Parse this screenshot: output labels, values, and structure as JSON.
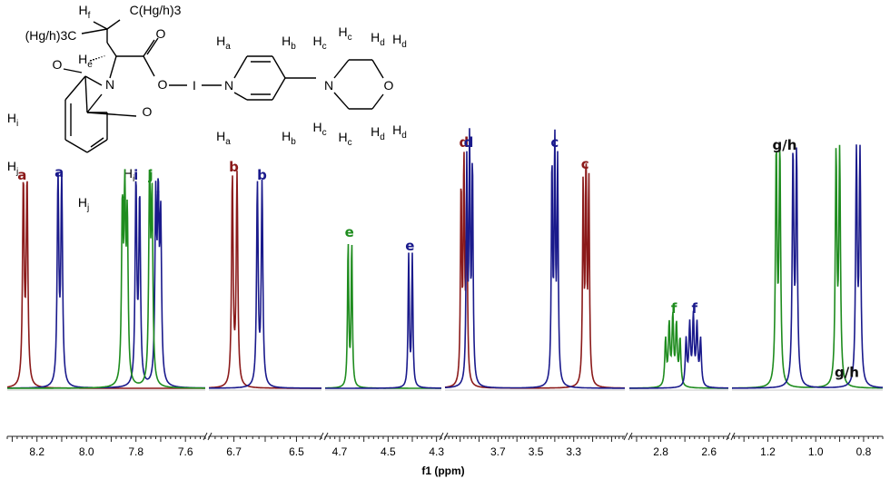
{
  "chart_data": {
    "type": "line",
    "xlabel": "f1 (ppm)",
    "x_axis_reversed": true,
    "broken_axis": true,
    "colors": {
      "red": "#8b1a1a",
      "blue": "#1a1a8c",
      "green": "#1e8c1e"
    },
    "panels": [
      {
        "xlim": [
          8.32,
          7.52
        ],
        "ticks": [
          "8.2",
          "8.0",
          "7.8",
          "7.6"
        ],
        "labels": [
          {
            "text": "a",
            "x": 8.26,
            "color": "red"
          },
          {
            "text": "a",
            "x": 8.11,
            "color": "blue"
          },
          {
            "text": "i",
            "x": 7.85,
            "color": "green"
          },
          {
            "text": "i",
            "x": 7.8,
            "color": "blue"
          },
          {
            "text": "j",
            "x": 7.74,
            "color": "green"
          },
          {
            "text": "j",
            "x": 7.71,
            "color": "blue"
          }
        ],
        "series": [
          {
            "color": "red",
            "peaks": [
              {
                "x": 8.255,
                "h": 0.74,
                "w": 0.004
              },
              {
                "x": 8.24,
                "h": 0.74,
                "w": 0.004
              }
            ]
          },
          {
            "color": "blue",
            "peaks": [
              {
                "x": 8.115,
                "h": 0.75,
                "w": 0.004
              },
              {
                "x": 8.1,
                "h": 0.75,
                "w": 0.004
              },
              {
                "x": 7.8,
                "h": 0.74,
                "w": 0.004
              },
              {
                "x": 7.785,
                "h": 0.68,
                "w": 0.004
              },
              {
                "x": 7.72,
                "h": 0.65,
                "w": 0.004
              },
              {
                "x": 7.71,
                "h": 0.62,
                "w": 0.004
              },
              {
                "x": 7.7,
                "h": 0.58,
                "w": 0.004
              }
            ]
          },
          {
            "color": "green",
            "peaks": [
              {
                "x": 7.855,
                "h": 0.62,
                "w": 0.004
              },
              {
                "x": 7.845,
                "h": 0.64,
                "w": 0.004
              },
              {
                "x": 7.835,
                "h": 0.58,
                "w": 0.004
              },
              {
                "x": 7.745,
                "h": 0.74,
                "w": 0.004
              },
              {
                "x": 7.735,
                "h": 0.66,
                "w": 0.004
              }
            ]
          }
        ]
      },
      {
        "xlim": [
          6.78,
          6.42
        ],
        "ticks": [
          "6.7",
          "6.5"
        ],
        "labels": [
          {
            "text": "b",
            "x": 6.7,
            "color": "red"
          },
          {
            "text": "b",
            "x": 6.61,
            "color": "blue"
          }
        ],
        "series": [
          {
            "color": "red",
            "peaks": [
              {
                "x": 6.705,
                "h": 0.77,
                "w": 0.003
              },
              {
                "x": 6.69,
                "h": 0.77,
                "w": 0.003
              }
            ]
          },
          {
            "color": "blue",
            "peaks": [
              {
                "x": 6.625,
                "h": 0.74,
                "w": 0.003
              },
              {
                "x": 6.61,
                "h": 0.74,
                "w": 0.003
              }
            ]
          }
        ]
      },
      {
        "xlim": [
          4.76,
          4.28
        ],
        "ticks": [
          "4.7",
          "4.5",
          "4.3"
        ],
        "labels": [
          {
            "text": "e",
            "x": 4.66,
            "color": "green"
          },
          {
            "text": "e",
            "x": 4.41,
            "color": "blue"
          }
        ],
        "series": [
          {
            "color": "green",
            "peaks": [
              {
                "x": 4.665,
                "h": 0.53,
                "w": 0.003
              },
              {
                "x": 4.65,
                "h": 0.53,
                "w": 0.003
              }
            ]
          },
          {
            "color": "blue",
            "peaks": [
              {
                "x": 4.415,
                "h": 0.48,
                "w": 0.003
              },
              {
                "x": 4.4,
                "h": 0.48,
                "w": 0.003
              }
            ]
          }
        ]
      },
      {
        "xlim": [
          3.98,
          3.03
        ],
        "ticks": [
          "3.7",
          "3.5",
          "3.3"
        ],
        "labels": [
          {
            "text": "d",
            "x": 3.88,
            "color": "red"
          },
          {
            "text": "d",
            "x": 3.855,
            "color": "blue"
          },
          {
            "text": "c",
            "x": 3.4,
            "color": "blue"
          },
          {
            "text": "c",
            "x": 3.24,
            "color": "red"
          }
        ],
        "series": [
          {
            "color": "red",
            "peaks": [
              {
                "x": 3.895,
                "h": 0.72,
                "w": 0.004
              },
              {
                "x": 3.88,
                "h": 0.8,
                "w": 0.004
              },
              {
                "x": 3.865,
                "h": 0.72,
                "w": 0.004
              },
              {
                "x": 3.25,
                "h": 0.74,
                "w": 0.004
              },
              {
                "x": 3.235,
                "h": 0.78,
                "w": 0.004
              },
              {
                "x": 3.22,
                "h": 0.74,
                "w": 0.004
              }
            ]
          },
          {
            "color": "blue",
            "peaks": [
              {
                "x": 3.865,
                "h": 0.8,
                "w": 0.004
              },
              {
                "x": 3.85,
                "h": 0.86,
                "w": 0.004
              },
              {
                "x": 3.835,
                "h": 0.8,
                "w": 0.004
              },
              {
                "x": 3.415,
                "h": 0.8,
                "w": 0.004
              },
              {
                "x": 3.4,
                "h": 0.86,
                "w": 0.004
              },
              {
                "x": 3.385,
                "h": 0.8,
                "w": 0.004
              }
            ]
          }
        ]
      },
      {
        "xlim": [
          2.93,
          2.52
        ],
        "ticks": [
          "2.8",
          "2.6"
        ],
        "labels": [
          {
            "text": "f",
            "x": 2.745,
            "color": "green"
          },
          {
            "text": "f",
            "x": 2.66,
            "color": "blue"
          }
        ],
        "series": [
          {
            "color": "green",
            "peaks": [
              {
                "x": 2.78,
                "h": 0.17,
                "w": 0.004
              },
              {
                "x": 2.765,
                "h": 0.22,
                "w": 0.004
              },
              {
                "x": 2.75,
                "h": 0.25,
                "w": 0.004
              },
              {
                "x": 2.735,
                "h": 0.22,
                "w": 0.004
              },
              {
                "x": 2.72,
                "h": 0.17,
                "w": 0.004
              }
            ]
          },
          {
            "color": "blue",
            "peaks": [
              {
                "x": 2.695,
                "h": 0.17,
                "w": 0.004
              },
              {
                "x": 2.68,
                "h": 0.22,
                "w": 0.004
              },
              {
                "x": 2.665,
                "h": 0.25,
                "w": 0.004
              },
              {
                "x": 2.65,
                "h": 0.22,
                "w": 0.004
              },
              {
                "x": 2.635,
                "h": 0.17,
                "w": 0.004
              }
            ]
          }
        ]
      },
      {
        "xlim": [
          1.35,
          0.72
        ],
        "ticks": [
          "1.2",
          "1.0",
          "0.8"
        ],
        "labels": [
          {
            "text": "g/h",
            "x": 1.13,
            "color": "black"
          },
          {
            "text": "g/h",
            "x": 0.87,
            "color": "black"
          }
        ],
        "series": [
          {
            "color": "green",
            "peaks": [
              {
                "x": 1.165,
                "h": 0.85,
                "w": 0.004
              },
              {
                "x": 1.15,
                "h": 0.85,
                "w": 0.004
              },
              {
                "x": 0.915,
                "h": 0.84,
                "w": 0.004
              },
              {
                "x": 0.9,
                "h": 0.84,
                "w": 0.004
              }
            ]
          },
          {
            "color": "blue",
            "peaks": [
              {
                "x": 1.095,
                "h": 0.84,
                "w": 0.004
              },
              {
                "x": 1.08,
                "h": 0.84,
                "w": 0.004
              },
              {
                "x": 0.83,
                "h": 0.84,
                "w": 0.004
              },
              {
                "x": 0.815,
                "h": 0.84,
                "w": 0.004
              }
            ]
          }
        ]
      }
    ]
  },
  "structure": {
    "labels": [
      "Hf",
      "C(Hg/h)3",
      "(Hg/h)3C",
      "He",
      "O",
      "O",
      "I",
      "N",
      "Ha",
      "Hb",
      "Hc",
      "Hc",
      "Hd",
      "Hd",
      "N",
      "O",
      "Ha",
      "Hb",
      "Hc",
      "Hc",
      "Hd",
      "Hd",
      "O",
      "N",
      "O",
      "Hi",
      "Hj",
      "Hj",
      "Hi"
    ]
  }
}
